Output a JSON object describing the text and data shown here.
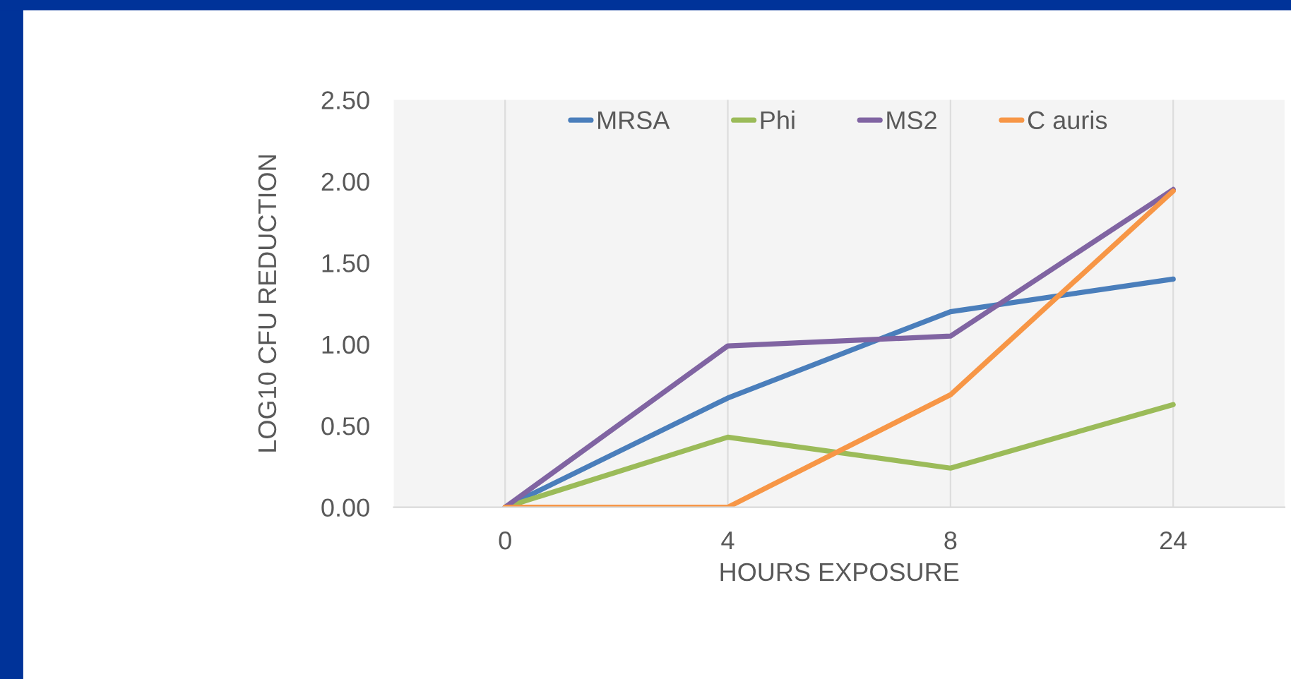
{
  "chart_data": {
    "type": "line",
    "xlabel": "HOURS EXPOSURE",
    "ylabel": "LOG10 CFU REDUCTION",
    "categories": [
      "0",
      "4",
      "8",
      "24"
    ],
    "series": [
      {
        "name": "MRSA",
        "color": "#4a7ebb",
        "values": [
          0,
          0.67,
          1.2,
          1.4
        ]
      },
      {
        "name": "Phi",
        "color": "#9bbb59",
        "values": [
          0,
          0.43,
          0.24,
          0.63
        ]
      },
      {
        "name": "MS2",
        "color": "#8064a2",
        "values": [
          0,
          0.99,
          1.05,
          1.95
        ]
      },
      {
        "name": "C auris",
        "color": "#f79646",
        "values": [
          0,
          0,
          0.69,
          1.94
        ]
      }
    ],
    "ylim": [
      0,
      2.5
    ],
    "yticks": [
      {
        "value": 0,
        "label": "0.00"
      },
      {
        "value": 0.5,
        "label": "0.50"
      },
      {
        "value": 1,
        "label": "1.00"
      },
      {
        "value": 1.5,
        "label": "1.50"
      },
      {
        "value": 2,
        "label": "2.00"
      },
      {
        "value": 2.5,
        "label": "2.50"
      }
    ],
    "grid": "x",
    "legend": "top",
    "marker": "none",
    "line_style": "solid"
  }
}
